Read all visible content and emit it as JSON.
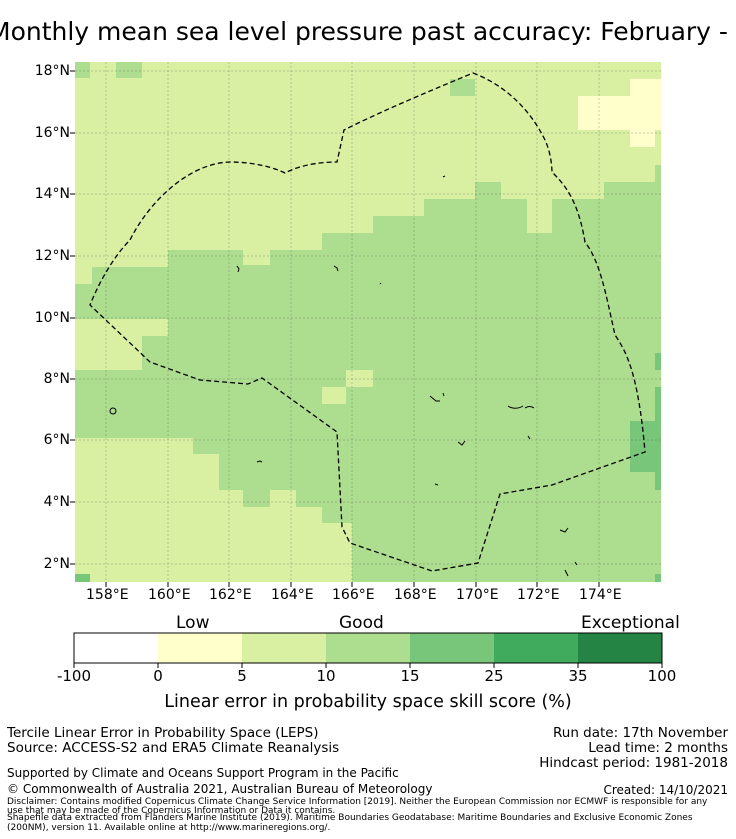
{
  "title": "Monthly mean sea level pressure past accuracy: February - March",
  "map": {
    "lat_labels": [
      "18°N",
      "16°N",
      "14°N",
      "12°N",
      "10°N",
      "8°N",
      "6°N",
      "4°N",
      "2°N"
    ],
    "lon_labels": [
      "158°E",
      "160°E",
      "162°E",
      "164°E",
      "166°E",
      "168°E",
      "170°E",
      "172°E",
      "174°E"
    ],
    "boundary": "Maritime Boundary (dashed)"
  },
  "colorbar": {
    "categories": [
      "Low",
      "Good",
      "Exceptional"
    ],
    "ticks": [
      "-100",
      "0",
      "5",
      "10",
      "15",
      "25",
      "35",
      "100"
    ],
    "colors": [
      "#ffffff",
      "#ffffcc",
      "#d9f0a3",
      "#addd8e",
      "#78c679",
      "#41ab5d",
      "#238443"
    ],
    "label": "Linear error in probability space skill score (%)"
  },
  "info": {
    "left1": "Tercile Linear Error in Probability Space (LEPS)",
    "left2": "Source: ACCESS-S2 and ERA5 Climate Reanalysis",
    "run_date": "Run date: 17th November",
    "lead_time": "Lead time: 2 months",
    "hindcast": "Hindcast period: 1981-2018",
    "support": "Supported by Climate and Oceans Support Program in the Pacific",
    "copyright": "© Commonwealth of Australia 2021, Australian Bureau of Meteorology",
    "created": "Created: 14/10/2021",
    "disclaimer1": "Disclaimer: Contains modified Copernicus Climate Change Service Information [2019]. Neither the European Commission nor ECMWF is responsible for any",
    "disclaimer2": "use that may be made of the Copernicus Information or Data it contains.",
    "shapefile1": "Shapefile data extracted from Flanders Marine Institute (2019). Maritime Boundaries Geodatabase: Maritime Boundaries and Exclusive Economic Zones",
    "shapefile2": "(200NM), version 11. Available online at http://www.marineregions.org/."
  }
}
